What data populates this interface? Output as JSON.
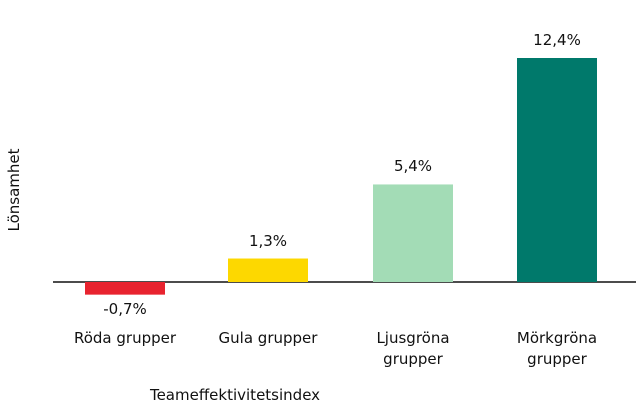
{
  "chart_data": {
    "type": "bar",
    "y_label": "Lönsamhet",
    "x_label": "Teameffektivitetsindex",
    "categories": [
      "Röda grupper",
      "Gula grupper",
      "Ljusgröna grupper",
      "Mörkgröna grupper"
    ],
    "values": [
      -0.7,
      1.3,
      5.4,
      12.4
    ],
    "value_labels": [
      "-0,7%",
      "1,3%",
      "5,4%",
      "12,4%"
    ],
    "colors": [
      "#e8232f",
      "#fdd800",
      "#a3dcb6",
      "#00796b"
    ]
  }
}
